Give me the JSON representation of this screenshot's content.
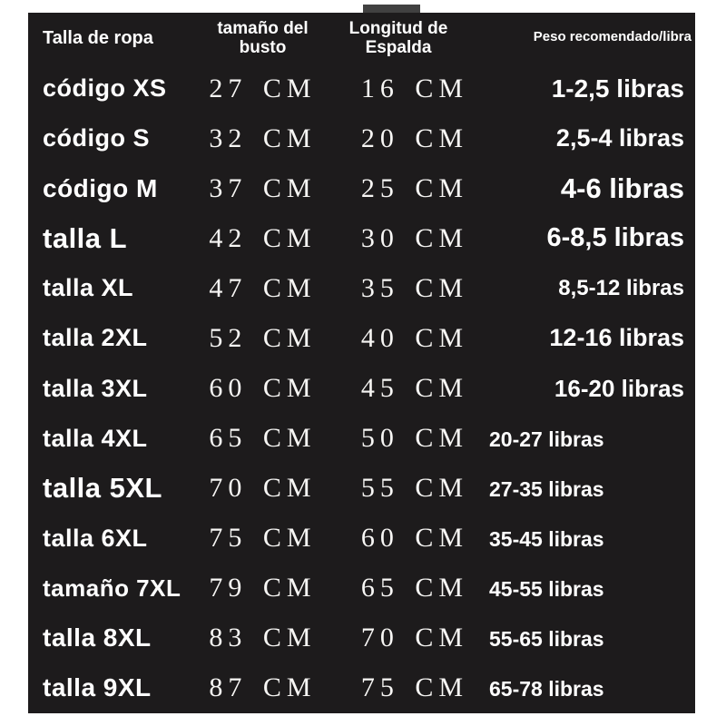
{
  "colors": {
    "background": "#ffffff",
    "panel": "#1d1b1c",
    "text": "#ffffff",
    "top_tab": "#414141"
  },
  "chart_data": {
    "type": "table",
    "title": "",
    "columns": [
      "Talla de ropa",
      "tamaño del busto",
      "Longitud de Espalda",
      "Peso recomendado/libra"
    ],
    "rows": [
      {
        "size": "código XS",
        "bust": "27 CM",
        "back": "16 CM",
        "weight": "1-2,5 libras"
      },
      {
        "size": "código S",
        "bust": "32 CM",
        "back": "20 CM",
        "weight": "2,5-4 libras"
      },
      {
        "size": "código M",
        "bust": "37 CM",
        "back": "25 CM",
        "weight": "4-6 libras"
      },
      {
        "size": "talla L",
        "bust": "42 CM",
        "back": "30 CM",
        "weight": "6-8,5 libras"
      },
      {
        "size": "talla XL",
        "bust": "47 CM",
        "back": "35 CM",
        "weight": "8,5-12 libras"
      },
      {
        "size": "talla 2XL",
        "bust": "52 CM",
        "back": "40 CM",
        "weight": "12-16 libras"
      },
      {
        "size": "talla 3XL",
        "bust": "60 CM",
        "back": "45 CM",
        "weight": "16-20 libras"
      },
      {
        "size": "talla 4XL",
        "bust": "65 CM",
        "back": "50 CM",
        "weight": "20-27 libras"
      },
      {
        "size": "talla 5XL",
        "bust": "70 CM",
        "back": "55 CM",
        "weight": "27-35 libras"
      },
      {
        "size": "talla 6XL",
        "bust": "75 CM",
        "back": "60 CM",
        "weight": "35-45 libras"
      },
      {
        "size": "tamaño 7XL",
        "bust": "79 CM",
        "back": "65 CM",
        "weight": "45-55 libras"
      },
      {
        "size": "talla 8XL",
        "bust": "83 CM",
        "back": "70 CM",
        "weight": "55-65 libras"
      },
      {
        "size": "talla 9XL",
        "bust": "87 CM",
        "back": "75 CM",
        "weight": "65-78 libras"
      }
    ]
  }
}
